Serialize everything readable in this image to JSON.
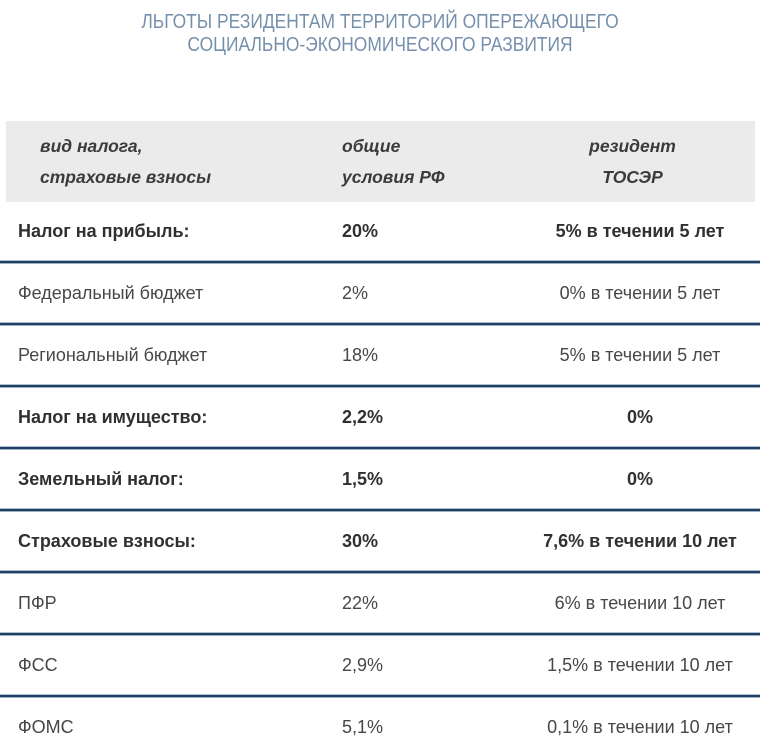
{
  "title": {
    "line1": "ЛЬГОТЫ РЕЗИДЕНТАМ ТЕРРИТОРИЙ ОПЕРЕЖАЮЩЕГО",
    "line2": "СОЦИАЛЬНО-ЭКОНОМИЧЕСКОГО РАЗВИТИЯ"
  },
  "colors": {
    "title_text": "#7590ac",
    "header_background": "#ebebeb",
    "separator_core": "#21405f",
    "separator_halo": "#aec0d5",
    "body_text": "#474747"
  },
  "table": {
    "headers": [
      {
        "line1": "вид налога,",
        "line2": "страховые взносы"
      },
      {
        "line1": "общие",
        "line2": "условия РФ"
      },
      {
        "line1": "резидент",
        "line2": "ТОСЭР"
      }
    ]
  },
  "chart_data": {
    "type": "table",
    "title": "ЛЬГОТЫ РЕЗИДЕНТАМ ТЕРРИТОРИЙ ОПЕРЕЖАЮЩЕГО СОЦИАЛЬНО-ЭКОНОМИЧЕСКОГО РАЗВИТИЯ",
    "columns": [
      "вид налога, страховые взносы",
      "общие условия РФ",
      "резидент ТОСЭР"
    ],
    "rows": [
      {
        "category": "Налог на прибыль:",
        "bold": true,
        "general": "20%",
        "resident": "5% в течении 5 лет"
      },
      {
        "category": "Федеральный бюджет",
        "bold": false,
        "general": "2%",
        "resident": "0% в течении 5 лет"
      },
      {
        "category": "Региональный бюджет",
        "bold": false,
        "general": "18%",
        "resident": "5% в течении 5 лет"
      },
      {
        "category": "Налог на имущество:",
        "bold": true,
        "general": "2,2%",
        "resident": "0%"
      },
      {
        "category": "Земельный налог:",
        "bold": true,
        "general": "1,5%",
        "resident": "0%"
      },
      {
        "category": "Страховые взносы:",
        "bold": true,
        "general": "30%",
        "resident": "7,6% в течении 10 лет"
      },
      {
        "category": "ПФР",
        "bold": false,
        "general": "22%",
        "resident": "6% в течении 10 лет"
      },
      {
        "category": "ФСС",
        "bold": false,
        "general": "2,9%",
        "resident": "1,5% в течении 10 лет"
      },
      {
        "category": "ФОМС",
        "bold": false,
        "general": "5,1%",
        "resident": "0,1% в течении 10 лет"
      }
    ]
  }
}
